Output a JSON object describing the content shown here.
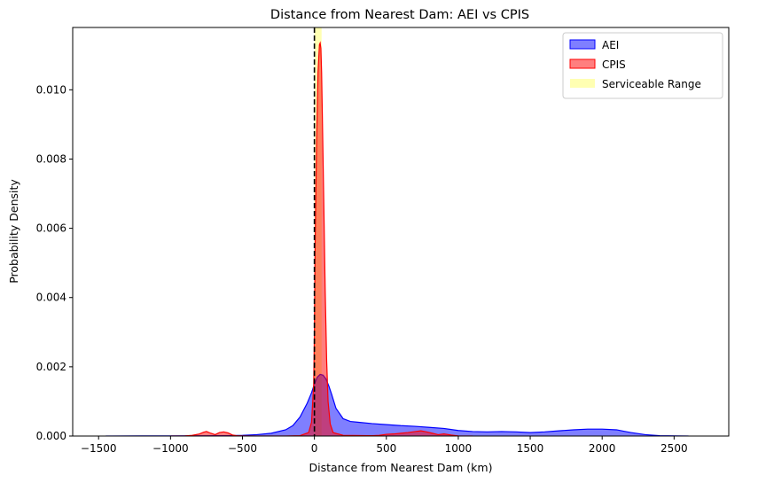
{
  "chart_data": {
    "type": "area",
    "title": "Distance from Nearest Dam: AEI vs CPIS",
    "xlabel": "Distance from Nearest Dam (km)",
    "ylabel": "Probability Density",
    "xlim": [
      -1680,
      2880
    ],
    "ylim": [
      0,
      0.0118
    ],
    "xticks": [
      -1500,
      -1000,
      -500,
      0,
      500,
      1000,
      1500,
      2000,
      2500
    ],
    "xtick_labels": [
      "−1500",
      "−1000",
      "−500",
      "0",
      "500",
      "1000",
      "1500",
      "2000",
      "2500"
    ],
    "yticks": [
      0,
      0.002,
      0.004,
      0.006,
      0.008,
      0.01
    ],
    "ytick_labels": [
      "0.000",
      "0.002",
      "0.004",
      "0.006",
      "0.008",
      "0.010"
    ],
    "legend_position": "top-right",
    "grid": false,
    "series": [
      {
        "name": "AEI",
        "color": "#0000ff",
        "fill_alpha": 0.5,
        "x": [
          -1450,
          -1200,
          -1000,
          -800,
          -600,
          -500,
          -400,
          -300,
          -200,
          -150,
          -100,
          -50,
          -20,
          0,
          20,
          40,
          60,
          80,
          100,
          120,
          150,
          200,
          250,
          300,
          400,
          500,
          600,
          700,
          800,
          900,
          1000,
          1100,
          1200,
          1300,
          1400,
          1500,
          1600,
          1700,
          1800,
          1900,
          2000,
          2100,
          2150,
          2200,
          2300,
          2400,
          2600
        ],
        "y": [
          0.0,
          3e-06,
          5e-06,
          8e-06,
          1e-05,
          2e-05,
          4e-05,
          8e-05,
          0.00018,
          0.0003,
          0.00055,
          0.00095,
          0.00125,
          0.0015,
          0.0017,
          0.00178,
          0.00176,
          0.00165,
          0.00145,
          0.0012,
          0.0008,
          0.0005,
          0.00042,
          0.0004,
          0.00036,
          0.00033,
          0.0003,
          0.00028,
          0.00025,
          0.00022,
          0.00016,
          0.00013,
          0.00012,
          0.00013,
          0.00012,
          0.0001,
          0.00012,
          0.00015,
          0.00018,
          0.0002,
          0.0002,
          0.00018,
          0.00014,
          0.0001,
          4e-05,
          1e-05,
          0.0
        ]
      },
      {
        "name": "CPIS",
        "color": "#ff0000",
        "fill_alpha": 0.5,
        "x": [
          -1000,
          -900,
          -850,
          -800,
          -770,
          -750,
          -720,
          -690,
          -660,
          -630,
          -600,
          -570,
          -540,
          -500,
          -400,
          -200,
          -100,
          -40,
          -20,
          -5,
          0,
          5,
          15,
          25,
          35,
          40,
          45,
          50,
          55,
          65,
          75,
          85,
          95,
          110,
          130,
          200,
          400,
          450,
          500,
          550,
          600,
          650,
          700,
          740,
          780,
          820,
          860,
          900,
          950,
          1000,
          1100
        ],
        "y": [
          0.0,
          5e-06,
          2e-05,
          6e-05,
          0.00011,
          0.00013,
          8e-05,
          4e-05,
          0.0001,
          0.00012,
          9e-05,
          3e-05,
          1e-05,
          5e-06,
          0.0,
          0.0,
          1e-05,
          0.0001,
          0.0004,
          0.0015,
          0.003,
          0.0055,
          0.0085,
          0.0105,
          0.0113,
          0.01135,
          0.0112,
          0.0105,
          0.0093,
          0.0068,
          0.0042,
          0.0022,
          0.001,
          0.00035,
          0.0001,
          2e-05,
          1e-05,
          2e-05,
          5e-05,
          6e-05,
          8e-05,
          0.0001,
          0.00013,
          0.00015,
          0.00012,
          8e-05,
          4e-05,
          6e-05,
          3e-05,
          5e-06,
          0.0
        ]
      }
    ],
    "serviceable_range": {
      "name": "Serviceable Range",
      "x_start": 0,
      "x_end": 50,
      "color": "#ffff00",
      "alpha": 0.3
    },
    "vline": {
      "x": 0,
      "color": "#000000",
      "style": "dashed"
    }
  }
}
